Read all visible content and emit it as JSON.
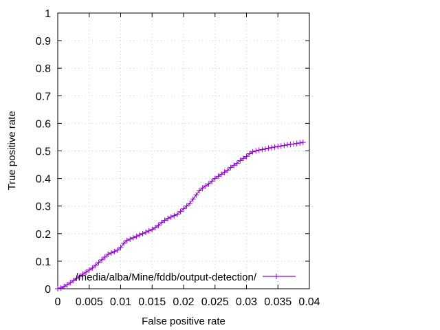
{
  "chart_data": {
    "type": "line",
    "xlabel": "False positive rate",
    "ylabel": "True positive rate",
    "xlim": [
      0,
      0.04
    ],
    "ylim": [
      0,
      1
    ],
    "x_ticks": [
      "0",
      "0.005",
      "0.01",
      "0.015",
      "0.02",
      "0.025",
      "0.03",
      "0.035",
      "0.04"
    ],
    "y_ticks": [
      "0",
      "0.1",
      "0.2",
      "0.3",
      "0.4",
      "0.5",
      "0.6",
      "0.7",
      "0.8",
      "0.9",
      "1"
    ],
    "grid": true,
    "legend_position": "bottom-right",
    "series": [
      {
        "name": "/media/alba/Mine/fddb/output-detection/",
        "color": "#9400d3",
        "marker": "plus",
        "x": [
          0,
          0.0005,
          0.001,
          0.0015,
          0.002,
          0.0025,
          0.003,
          0.0035,
          0.004,
          0.0045,
          0.005,
          0.0055,
          0.006,
          0.0065,
          0.007,
          0.0075,
          0.008,
          0.0085,
          0.009,
          0.0095,
          0.01,
          0.0105,
          0.011,
          0.0115,
          0.012,
          0.0125,
          0.013,
          0.0135,
          0.014,
          0.0145,
          0.015,
          0.0155,
          0.016,
          0.0165,
          0.017,
          0.0175,
          0.018,
          0.0185,
          0.019,
          0.0195,
          0.02,
          0.0205,
          0.021,
          0.0215,
          0.022,
          0.0225,
          0.023,
          0.0235,
          0.024,
          0.0245,
          0.025,
          0.0255,
          0.026,
          0.0265,
          0.027,
          0.0275,
          0.028,
          0.0285,
          0.029,
          0.0295,
          0.03,
          0.0305,
          0.031,
          0.0315,
          0.032,
          0.0325,
          0.033,
          0.0335,
          0.034,
          0.0345,
          0.035,
          0.0355,
          0.036,
          0.0365,
          0.037,
          0.0375,
          0.038,
          0.0385,
          0.039
        ],
        "y": [
          0,
          0.003,
          0.008,
          0.015,
          0.022,
          0.03,
          0.038,
          0.045,
          0.053,
          0.06,
          0.068,
          0.075,
          0.085,
          0.095,
          0.105,
          0.115,
          0.125,
          0.13,
          0.135,
          0.14,
          0.15,
          0.165,
          0.175,
          0.18,
          0.185,
          0.19,
          0.195,
          0.2,
          0.205,
          0.21,
          0.215,
          0.222,
          0.23,
          0.24,
          0.248,
          0.255,
          0.26,
          0.265,
          0.27,
          0.28,
          0.29,
          0.3,
          0.31,
          0.325,
          0.34,
          0.355,
          0.365,
          0.373,
          0.38,
          0.39,
          0.4,
          0.408,
          0.415,
          0.423,
          0.43,
          0.44,
          0.448,
          0.455,
          0.465,
          0.473,
          0.48,
          0.49,
          0.497,
          0.5,
          0.503,
          0.505,
          0.507,
          0.51,
          0.512,
          0.514,
          0.516,
          0.518,
          0.52,
          0.522,
          0.524,
          0.525,
          0.527,
          0.529,
          0.531
        ]
      }
    ]
  }
}
